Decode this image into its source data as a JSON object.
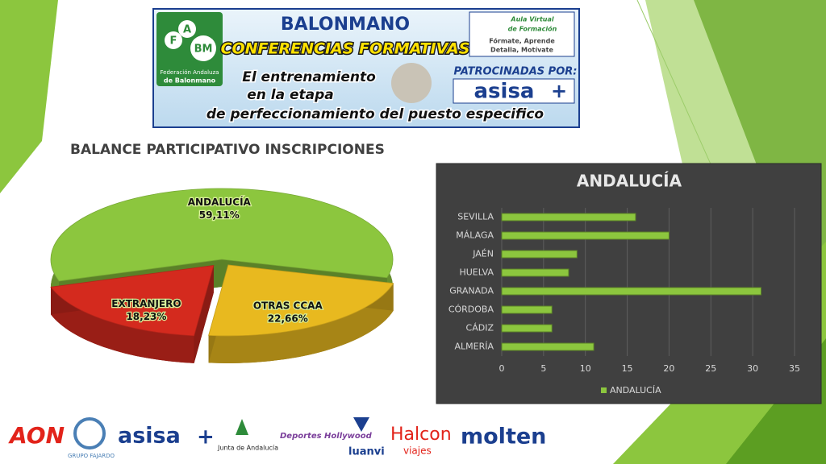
{
  "header": {
    "logo_letters": [
      "F",
      "A",
      "BM"
    ],
    "federation": [
      "Federación Andaluza",
      "de Balonmano"
    ],
    "title": "BALONMANO",
    "subtitle": "CONFERENCIAS FORMATIVAS",
    "lines": [
      "El entrenamiento",
      "en la etapa",
      "de perfeccionamiento del puesto especifico"
    ],
    "aula": [
      "Aula Virtual",
      "de Formación",
      "Fórmate, Aprende",
      "Detalla, Motívate"
    ],
    "sponsor_label": "PATROCINADAS POR:",
    "sponsor": "asisa"
  },
  "chart_data": [
    {
      "type": "pie",
      "title": "BALANCE PARTICIPATIVO INSCRIPCIONES",
      "categories": [
        "ANDALUCÍA",
        "OTRAS CCAA",
        "EXTRANJERO"
      ],
      "values": [
        59.11,
        22.66,
        18.23
      ],
      "value_labels": [
        "59,11%",
        "22,66%",
        "18,23%"
      ],
      "colors": [
        "#8cc63e",
        "#e8b91f",
        "#d42a1e"
      ]
    },
    {
      "type": "bar",
      "orientation": "horizontal",
      "title": "ANDALUCÍA",
      "categories": [
        "ALMERÍA",
        "CÁDIZ",
        "CÓRDOBA",
        "GRANADA",
        "HUELVA",
        "JAÉN",
        "MÁLAGA",
        "SEVILLA"
      ],
      "series": [
        {
          "name": "ANDALUCÍA",
          "color": "#8cc63e",
          "values": [
            11,
            6,
            6,
            31,
            8,
            9,
            20,
            16
          ]
        }
      ],
      "xlim": [
        0,
        35
      ],
      "xticks": [
        0,
        5,
        10,
        15,
        20,
        25,
        30,
        35
      ],
      "grid": true,
      "legend": "bottom"
    }
  ],
  "footer": {
    "sponsors": [
      "AON",
      "GRUPO FAJARDO",
      "asisa",
      "Junta de Andalucía",
      "Deportes Hollywood",
      "luanvi",
      "Halcon",
      "viajes",
      "molten"
    ]
  }
}
